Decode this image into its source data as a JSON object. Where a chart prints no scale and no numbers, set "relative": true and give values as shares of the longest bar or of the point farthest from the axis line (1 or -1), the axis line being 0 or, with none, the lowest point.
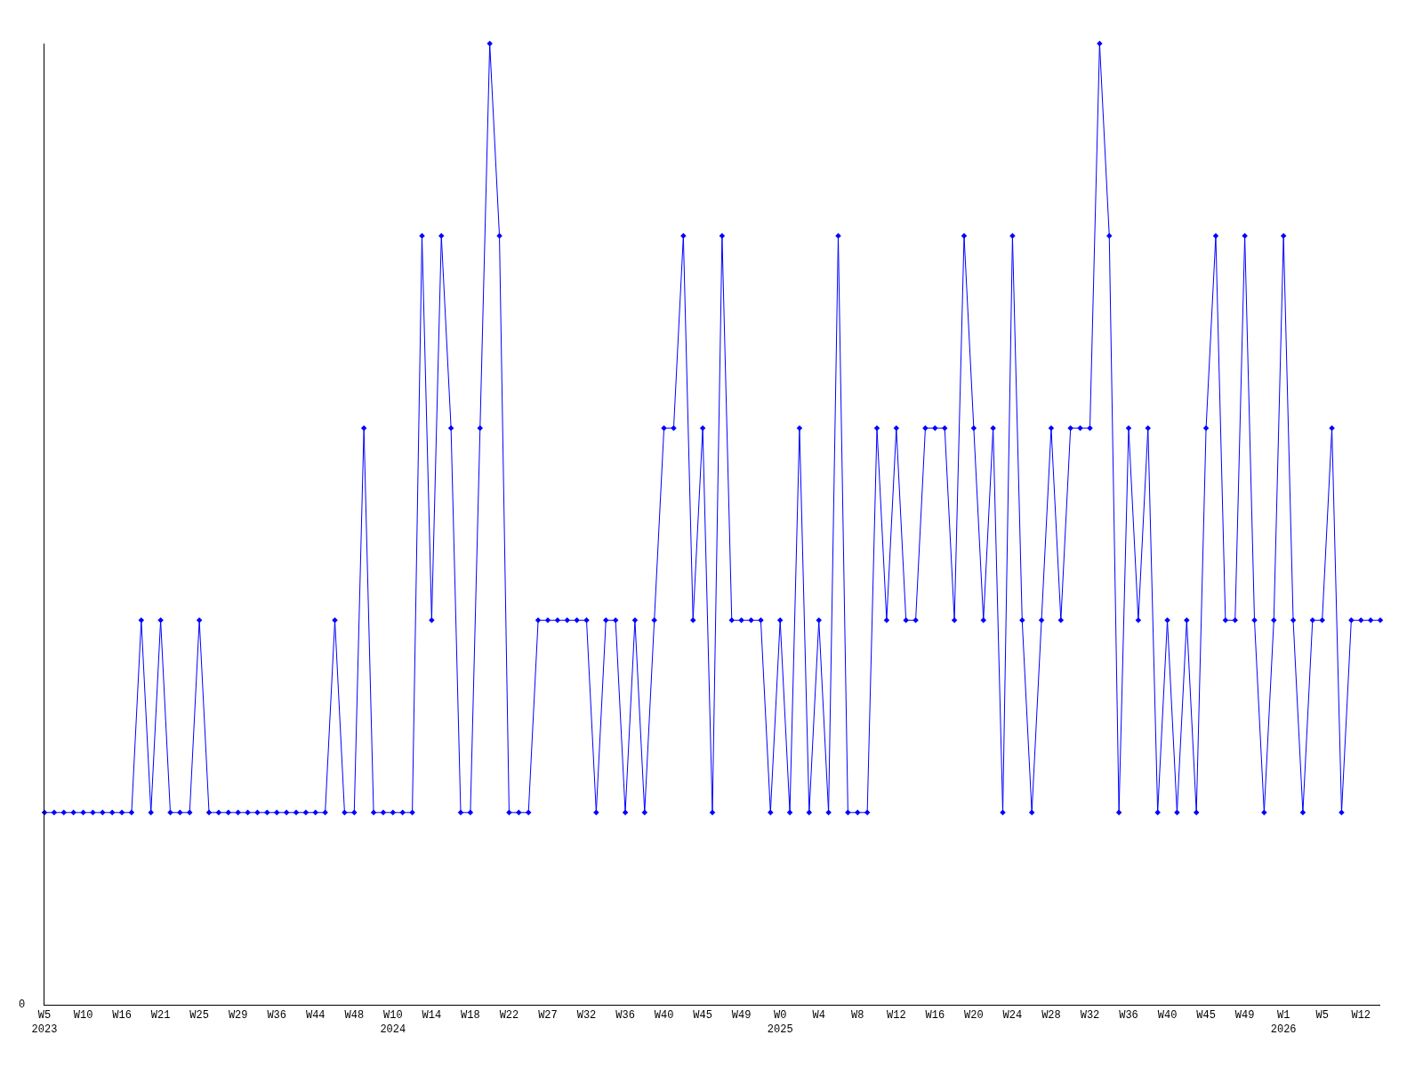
{
  "chart_data": {
    "type": "line",
    "relative": true,
    "color": "#0000ff",
    "marker": "diamond",
    "line_style": "solid",
    "legend": false,
    "annotations": [
      "0"
    ],
    "categories": [
      "W5\n2023",
      null,
      null,
      null,
      "W10",
      null,
      null,
      null,
      "W16",
      null,
      null,
      null,
      "W21",
      null,
      null,
      null,
      "W25",
      null,
      null,
      null,
      "W29",
      null,
      null,
      null,
      "W36",
      null,
      null,
      null,
      "W44",
      null,
      null,
      null,
      "W48",
      null,
      null,
      null,
      "W10\n2024",
      null,
      null,
      null,
      "W14",
      null,
      null,
      null,
      "W18",
      null,
      null,
      null,
      "W22",
      null,
      null,
      null,
      "W27",
      null,
      null,
      null,
      "W32",
      null,
      null,
      null,
      "W36",
      null,
      null,
      null,
      "W40",
      null,
      null,
      null,
      "W45",
      null,
      null,
      null,
      "W49",
      null,
      null,
      null,
      "W0\n2025",
      null,
      null,
      null,
      "W4",
      null,
      null,
      null,
      "W8",
      null,
      null,
      null,
      "W12",
      null,
      null,
      null,
      "W16",
      null,
      null,
      null,
      "W20",
      null,
      null,
      null,
      "W24",
      null,
      null,
      null,
      "W28",
      null,
      null,
      null,
      "W32",
      null,
      null,
      null,
      "W36",
      null,
      null,
      null,
      "W40",
      null,
      null,
      null,
      "W45",
      null,
      null,
      null,
      "W49",
      null,
      null,
      null,
      "W1\n2026",
      null,
      null,
      null,
      "W5",
      null,
      null,
      null,
      "W12",
      null,
      null
    ],
    "values": [
      0.2,
      0.2,
      0.2,
      0.2,
      0.2,
      0.2,
      0.2,
      0.2,
      0.2,
      0.2,
      0.4,
      0.2,
      0.4,
      0.2,
      0.2,
      0.2,
      0.4,
      0.2,
      0.2,
      0.2,
      0.2,
      0.2,
      0.2,
      0.2,
      0.2,
      0.2,
      0.2,
      0.2,
      0.2,
      0.2,
      0.4,
      0.2,
      0.2,
      0.6,
      0.2,
      0.2,
      0.2,
      0.2,
      0.2,
      0.8,
      0.4,
      0.8,
      0.6,
      0.2,
      0.2,
      0.6,
      1,
      0.8,
      0.2,
      0.2,
      0.2,
      0.4,
      0.4,
      0.4,
      0.4,
      0.4,
      0.4,
      0.2,
      0.4,
      0.4,
      0.2,
      0.4,
      0.2,
      0.4,
      0.6,
      0.6,
      0.8,
      0.4,
      0.6,
      0.2,
      0.8,
      0.4,
      0.4,
      0.4,
      0.4,
      0.2,
      0.4,
      0.2,
      0.6,
      0.2,
      0.4,
      0.2,
      0.8,
      0.2,
      0.2,
      0.2,
      0.6,
      0.4,
      0.6,
      0.4,
      0.4,
      0.6,
      0.6,
      0.6,
      0.4,
      0.8,
      0.6,
      0.4,
      0.6,
      0.2,
      0.8,
      0.4,
      0.2,
      0.4,
      0.6,
      0.4,
      0.6,
      0.6,
      0.6,
      1,
      0.8,
      0.2,
      0.6,
      0.4,
      0.6,
      0.2,
      0.4,
      0.2,
      0.4,
      0.2,
      0.6,
      0.8,
      0.4,
      0.4,
      0.8,
      0.4,
      0.2,
      0.4,
      0.8,
      0.4,
      0.2,
      0.4,
      0.4,
      0.6,
      0.2,
      0.4,
      0.4,
      0.4,
      0.4
    ]
  }
}
